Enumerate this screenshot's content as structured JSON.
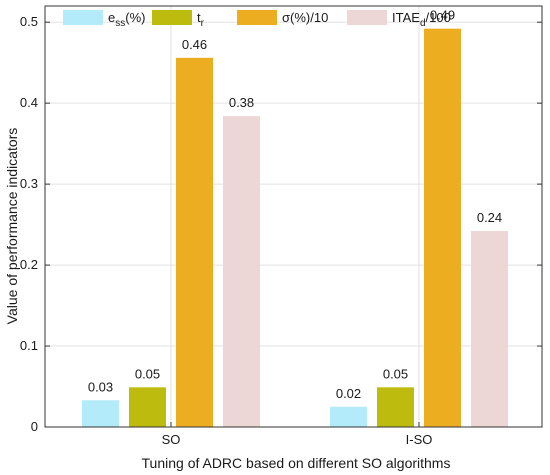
{
  "chart_data": {
    "type": "bar",
    "categories": [
      "SO",
      "I-SO"
    ],
    "series": [
      {
        "key": "ess",
        "legend_base": "e",
        "legend_sub": "ss",
        "legend_tail": "(%)",
        "color": "#b3ebfa",
        "values": [
          0.033,
          0.025
        ],
        "labels": [
          "0.03",
          "0.02"
        ]
      },
      {
        "key": "tr",
        "legend_base": "t",
        "legend_sub": "r",
        "legend_tail": "",
        "color": "#bcbb0e",
        "values": [
          0.049,
          0.049
        ],
        "labels": [
          "0.05",
          "0.05"
        ]
      },
      {
        "key": "sigma",
        "legend_base": "σ(%)/10",
        "legend_sub": "",
        "legend_tail": "",
        "color": "#ecad21",
        "values": [
          0.456,
          0.492
        ],
        "labels": [
          "0.46",
          "0.49"
        ]
      },
      {
        "key": "itae",
        "legend_base": "ITAE",
        "legend_sub": "d",
        "legend_tail": "/100",
        "color": "#ecd6d6",
        "values": [
          0.384,
          0.242
        ],
        "labels": [
          "0.38",
          "0.24"
        ]
      }
    ],
    "xlabel": "Tuning of ADRC based on different SO algorithms",
    "ylabel": "Value of performance indicators",
    "ylim": [
      0,
      0.52
    ],
    "yticks": [
      0,
      0.1,
      0.2,
      0.3,
      0.4,
      0.5
    ],
    "ytick_labels": [
      "0",
      "0.1",
      "0.2",
      "0.3",
      "0.4",
      "0.5"
    ],
    "grid": true,
    "legend_position": "top"
  }
}
